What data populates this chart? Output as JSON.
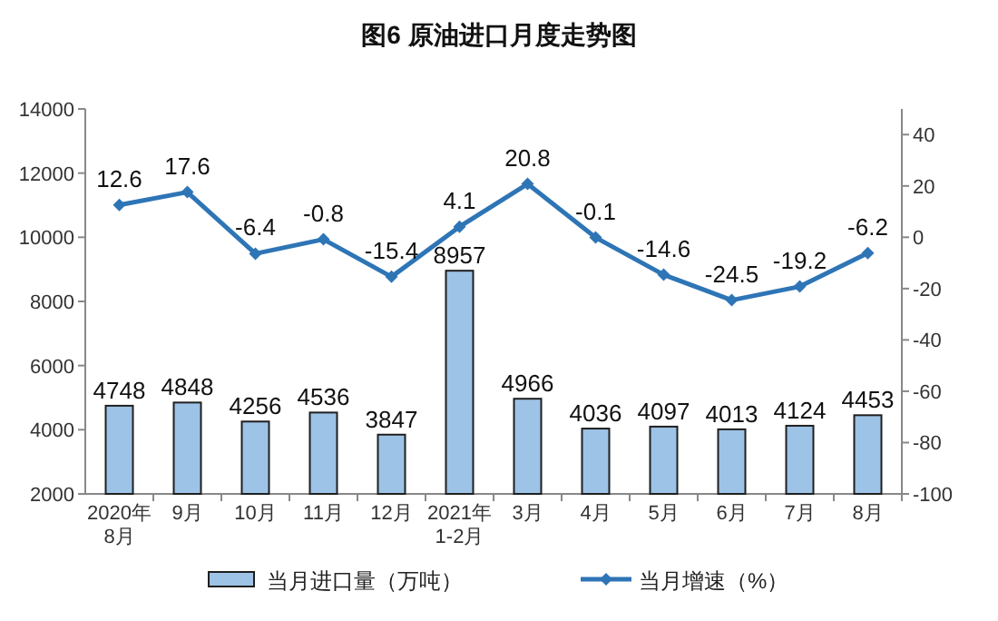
{
  "chart_data": {
    "type": "bar",
    "title": "图6  原油进口月度走势图",
    "categories": [
      "2020年\n8月",
      "9月",
      "10月",
      "11月",
      "12月",
      "2021年\n1-2月",
      "3月",
      "4月",
      "5月",
      "6月",
      "7月",
      "8月"
    ],
    "series": [
      {
        "name": "当月进口量（万吨）",
        "color": "#9dc3e6",
        "values": [
          4748,
          4848,
          4256,
          4536,
          3847,
          8957,
          4966,
          4036,
          4097,
          4013,
          4124,
          4453
        ]
      },
      {
        "name": "当月增速（%）",
        "type": "line",
        "axis": "y2",
        "color": "#2e75b6",
        "values": [
          12.6,
          17.6,
          -6.4,
          -0.8,
          -15.4,
          4.1,
          20.8,
          -0.1,
          -14.6,
          -24.5,
          -19.2,
          -6.2
        ]
      }
    ],
    "ylim": [
      2000,
      14000
    ],
    "yticks": [
      2000,
      4000,
      6000,
      8000,
      10000,
      12000,
      14000
    ],
    "y2lim": [
      -100,
      50
    ],
    "y2ticks": [
      -100,
      -80,
      -60,
      -40,
      -20,
      0,
      20,
      40
    ],
    "data_labels": true,
    "legend": "bottom",
    "marker": "diamond",
    "line_style": "solid"
  }
}
